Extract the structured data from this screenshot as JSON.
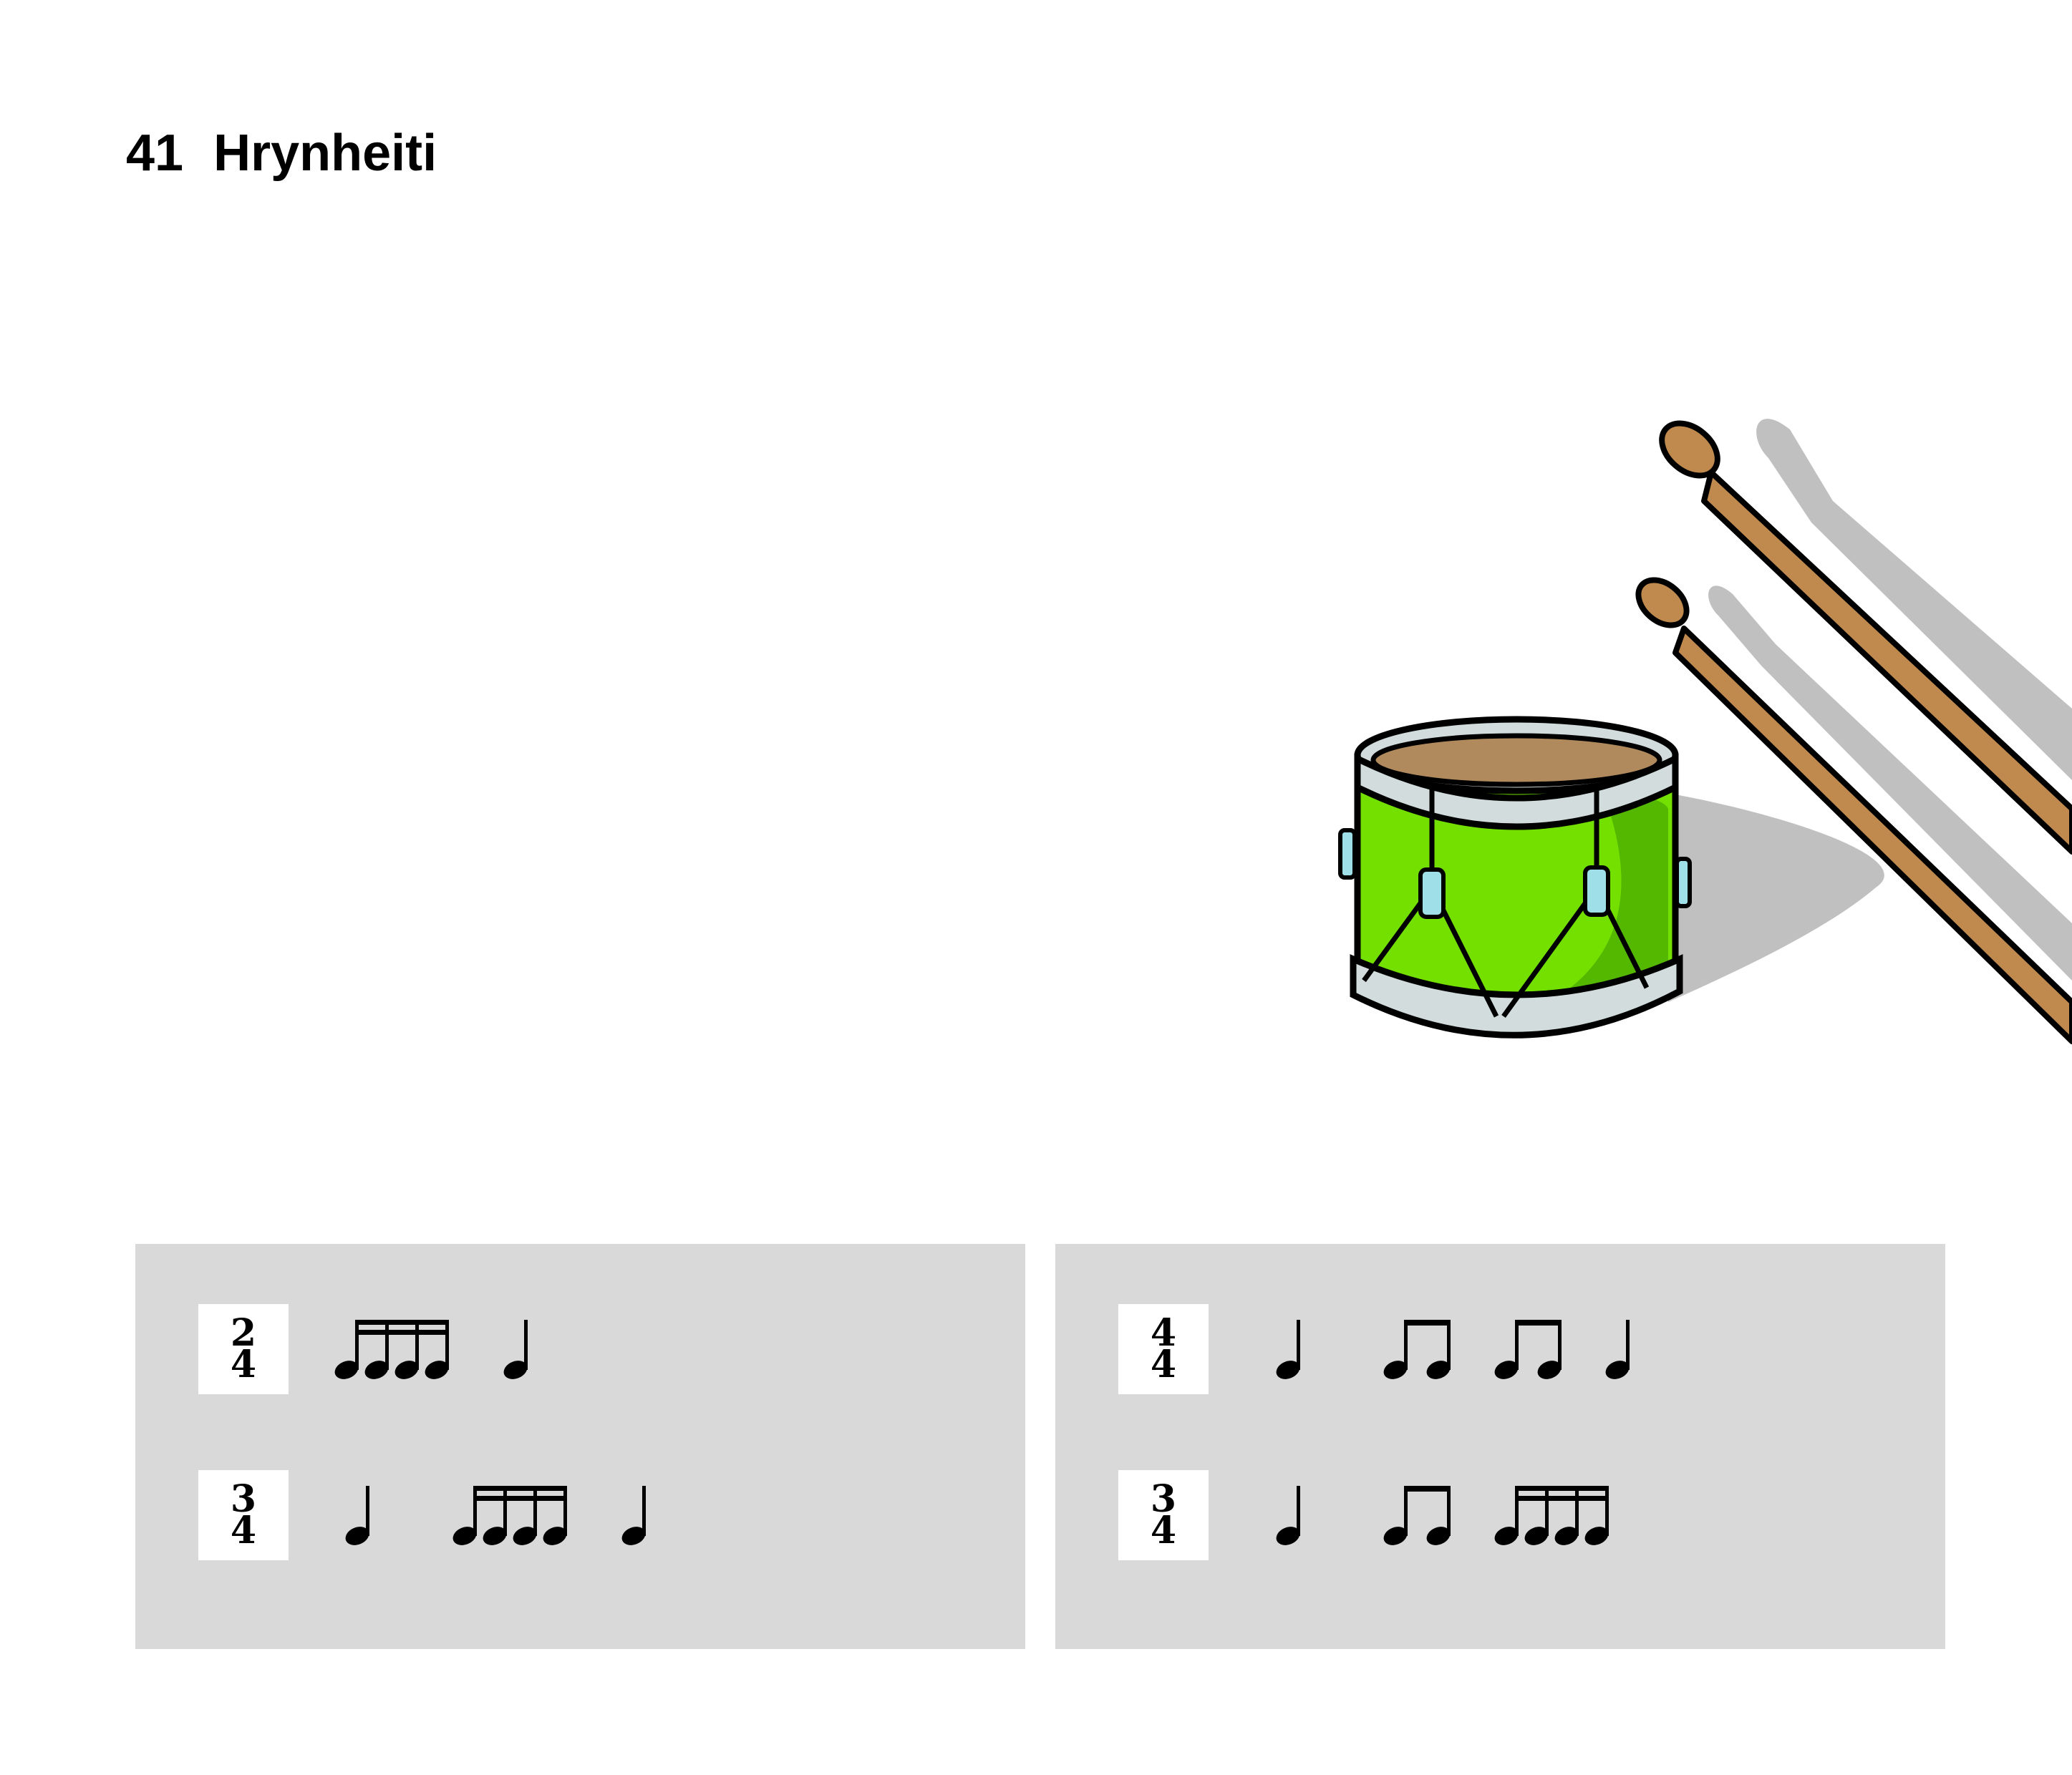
{
  "header": {
    "number": "41",
    "title": "Hrynheiti"
  },
  "illustration": {
    "subject": "drum-with-drumsticks",
    "colors": {
      "drum_body": "#73e000",
      "drum_body_shade": "#55b800",
      "drum_rim": "#d2dcdc",
      "drum_head": "#b08a5c",
      "stick": "#c08a4e",
      "shadow": "#c0c0c0",
      "outline": "#000000",
      "tension_tab": "#9fe0e8"
    }
  },
  "exercises": {
    "panel_color": "#d9d9d9",
    "panels": [
      {
        "rows": [
          {
            "time_signature": {
              "top": "2",
              "bottom": "4"
            },
            "notes": [
              "sixteenth-group-4",
              "quarter"
            ]
          },
          {
            "time_signature": {
              "top": "3",
              "bottom": "4"
            },
            "notes": [
              "quarter",
              "sixteenth-group-4",
              "quarter"
            ]
          }
        ]
      },
      {
        "rows": [
          {
            "time_signature": {
              "top": "4",
              "bottom": "4"
            },
            "notes": [
              "quarter",
              "eighth-pair",
              "eighth-pair",
              "quarter"
            ]
          },
          {
            "time_signature": {
              "top": "3",
              "bottom": "4"
            },
            "notes": [
              "quarter",
              "eighth-pair",
              "sixteenth-group-4"
            ]
          }
        ]
      }
    ]
  }
}
